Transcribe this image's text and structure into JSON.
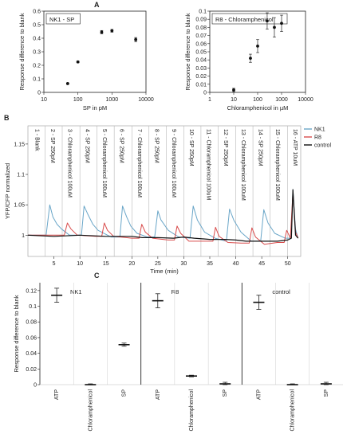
{
  "panels": {
    "A": "A",
    "B": "B",
    "C": "C"
  },
  "chart_data": [
    {
      "id": "A1",
      "type": "scatter",
      "scale_x": "log",
      "title": "NK1 - SP",
      "xlabel": "SP in pM",
      "ylabel": "Response difference to blank",
      "xlim": [
        10,
        10000
      ],
      "ylim": [
        0,
        0.6
      ],
      "xticks": [
        10,
        100,
        1000,
        10000
      ],
      "yticks": [
        0,
        0.1,
        0.2,
        0.3,
        0.4,
        0.5,
        0.6
      ],
      "points": [
        {
          "x": 50,
          "y": 0.065,
          "err": 0.003
        },
        {
          "x": 100,
          "y": 0.225,
          "err": 0.006
        },
        {
          "x": 500,
          "y": 0.445,
          "err": 0.012
        },
        {
          "x": 1000,
          "y": 0.455,
          "err": 0.01
        },
        {
          "x": 5000,
          "y": 0.39,
          "err": 0.015
        }
      ]
    },
    {
      "id": "A2",
      "type": "scatter",
      "scale_x": "log",
      "title": "R8 - Chloramphenicol",
      "xlabel": "Chloramphenicol in µM",
      "ylabel": "Response difference to blank",
      "xlim": [
        1,
        10000
      ],
      "ylim": [
        0,
        0.1
      ],
      "xticks": [
        1,
        10,
        100,
        1000,
        10000
      ],
      "yticks": [
        0,
        0.01,
        0.02,
        0.03,
        0.04,
        0.05,
        0.06,
        0.07,
        0.08,
        0.09,
        0.1
      ],
      "points": [
        {
          "x": 10,
          "y": 0.003,
          "err": 0.002
        },
        {
          "x": 50,
          "y": 0.042,
          "err": 0.005
        },
        {
          "x": 100,
          "y": 0.057,
          "err": 0.008
        },
        {
          "x": 250,
          "y": 0.088,
          "err": 0.01
        },
        {
          "x": 500,
          "y": 0.08,
          "err": 0.012
        },
        {
          "x": 1000,
          "y": 0.085,
          "err": 0.01
        }
      ]
    },
    {
      "id": "B",
      "type": "line",
      "xlabel": "Time (min)",
      "ylabel": "YFP/CFP normalized",
      "xlim": [
        0,
        52.5
      ],
      "ylim": [
        0.965,
        1.18
      ],
      "xticks": [
        5,
        10,
        15,
        20,
        25,
        30,
        35,
        40,
        45,
        50
      ],
      "yticks": [
        1,
        1.05,
        1.1,
        1.15
      ],
      "events": [
        {
          "t": 0.3,
          "label": "1 - Blank"
        },
        {
          "t": 3.3,
          "label": "2 - SP 250pM"
        },
        {
          "t": 6.6,
          "label": "3 - Chloramphenicol 100uM"
        },
        {
          "t": 10.0,
          "label": "4 - SP 250pM"
        },
        {
          "t": 13.3,
          "label": "5 - Chloramphenicol 100uM"
        },
        {
          "t": 16.6,
          "label": "6 - SP 250pM"
        },
        {
          "t": 20.0,
          "label": "7 - Chloramphenicol 100uM"
        },
        {
          "t": 23.3,
          "label": "8 - SP 250pM"
        },
        {
          "t": 26.6,
          "label": "9 - Chloramphenicol 100uM"
        },
        {
          "t": 30.0,
          "label": "10 - SP 250pM"
        },
        {
          "t": 33.3,
          "label": "11 - Chloramphenicol 100uM"
        },
        {
          "t": 36.6,
          "label": "12 - SP 250pM"
        },
        {
          "t": 40.0,
          "label": "13 - Chloramphenicol 100uM"
        },
        {
          "t": 43.3,
          "label": "14 - SP 250pM"
        },
        {
          "t": 46.6,
          "label": "15 - Chloramphenicol 100uM"
        },
        {
          "t": 50.0,
          "label": "16 - ATP 10uM"
        }
      ],
      "series": [
        {
          "name": "NK1",
          "color": "#6aa6c8",
          "x": [
            0,
            2,
            3.5,
            4.2,
            4.8,
            5.6,
            6.5,
            8,
            10.3,
            10.8,
            11.5,
            12.5,
            13.5,
            16,
            17.7,
            18.2,
            19,
            19.8,
            21,
            23,
            24.4,
            25,
            25.6,
            27,
            29,
            31.2,
            31.8,
            32.6,
            34,
            36,
            38.2,
            38.8,
            39.6,
            41,
            43,
            44.8,
            45.4,
            46.2,
            47.5,
            49.5,
            50.6,
            51,
            51.5,
            52
          ],
          "y": [
            1.0,
            1.0,
            1.0,
            1.05,
            1.03,
            1.018,
            1.01,
            1.0,
            1.0,
            1.048,
            1.035,
            1.018,
            1.008,
            0.997,
            0.997,
            1.048,
            1.03,
            1.015,
            1.003,
            0.997,
            0.997,
            1.04,
            1.025,
            1.008,
            0.997,
            0.995,
            1.048,
            1.025,
            1.005,
            0.995,
            0.99,
            1.043,
            1.025,
            1.005,
            0.99,
            0.99,
            1.042,
            1.02,
            1.003,
            0.995,
            0.995,
            1.075,
            1.01,
            0.995
          ]
        },
        {
          "name": "R8",
          "color": "#d94c4c",
          "x": [
            0,
            3,
            5.5,
            7,
            7.6,
            8.3,
            9.5,
            13,
            14.2,
            14.7,
            15.3,
            16.5,
            20,
            21.4,
            21.9,
            22.6,
            24,
            27,
            28.2,
            28.7,
            29.4,
            31,
            34,
            35.6,
            36.1,
            36.8,
            38.5,
            41,
            42.6,
            43.1,
            43.8,
            45.5,
            48,
            49.3,
            49.8,
            50.5,
            51,
            51.5,
            52
          ],
          "y": [
            1.0,
            1.0,
            1.0,
            1.0,
            1.02,
            1.01,
            1.0,
            0.998,
            0.998,
            1.02,
            1.008,
            0.998,
            0.995,
            0.995,
            1.018,
            1.005,
            0.995,
            0.992,
            0.992,
            1.015,
            1.003,
            0.99,
            0.99,
            0.99,
            1.013,
            0.998,
            0.988,
            0.987,
            0.987,
            1.012,
            0.997,
            0.985,
            0.988,
            0.988,
            1.008,
            0.995,
            1.07,
            1.005,
            0.995
          ]
        },
        {
          "name": "control",
          "color": "#111111",
          "x": [
            0,
            5,
            10,
            15,
            20,
            22,
            25,
            28,
            30,
            32,
            35,
            38,
            40,
            42,
            45,
            48,
            50,
            50.7,
            51,
            51.5,
            52
          ],
          "y": [
            1.0,
            0.998,
            1.0,
            0.998,
            0.998,
            0.996,
            0.996,
            0.995,
            0.997,
            0.995,
            0.993,
            0.993,
            0.992,
            0.99,
            0.99,
            0.99,
            0.992,
            0.995,
            1.075,
            1.0,
            0.995
          ]
        }
      ]
    },
    {
      "id": "C",
      "type": "scatter",
      "ylabel": "Response difference to blank",
      "ylim": [
        0,
        0.13
      ],
      "yticks": [
        0,
        0.02,
        0.04,
        0.06,
        0.08,
        0.1,
        0.12
      ],
      "categories": [
        "ATP",
        "Chloramphenicol",
        "SP"
      ],
      "groups": [
        {
          "name": "NK1",
          "values": [
            0.114,
            0.0,
            0.051
          ],
          "err": [
            0.009,
            0.001,
            0.002
          ]
        },
        {
          "name": "R8",
          "values": [
            0.107,
            0.011,
            0.001
          ],
          "err": [
            0.009,
            0.001,
            0.002
          ]
        },
        {
          "name": "control",
          "values": [
            0.105,
            0.0,
            0.001
          ],
          "err": [
            0.009,
            0.001,
            0.002
          ]
        }
      ]
    }
  ]
}
